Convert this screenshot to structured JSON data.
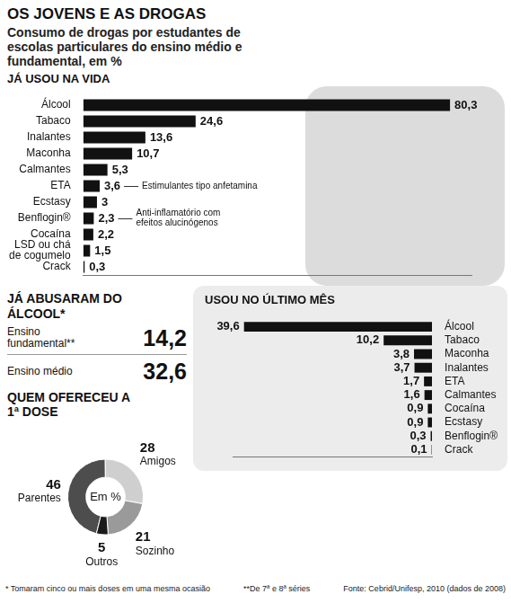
{
  "title": "OS JOVENS E AS DROGAS",
  "subtitle": "Consumo de drogas por estudantes de escolas particulares do ensino médio e fundamental, em %",
  "chart_data": [
    {
      "type": "bar",
      "title": "JÁ USOU NA VIDA",
      "orientation": "horizontal",
      "categories": [
        "Álcool",
        "Tabaco",
        "Inalantes",
        "Maconha",
        "Calmantes",
        "ETA",
        "Ecstasy",
        "Benflogin®",
        "Cocaína",
        "LSD ou chá de cogumelo",
        "Crack"
      ],
      "values": [
        80.3,
        24.6,
        13.6,
        10.7,
        5.3,
        3.6,
        3,
        2.3,
        2.2,
        1.5,
        0.3
      ],
      "value_labels": [
        "80,3",
        "24,6",
        "13,6",
        "10,7",
        "5,3",
        "3,6",
        "3",
        "2,3",
        "2,2",
        "1,5",
        "0,3"
      ],
      "color": "#111111",
      "xlim": [
        0,
        85
      ],
      "data_labels": true,
      "tick_labels": "y",
      "grid": false,
      "annotations": [
        {
          "text": "Estimulantes tipo anfetamina",
          "category": "ETA"
        },
        {
          "text": "Anti-inflamatório com efeitos alucinógenos",
          "category": "Benflogin®"
        }
      ]
    },
    {
      "type": "bar",
      "title": "USOU NO ÚLTIMO MÊS",
      "orientation": "horizontal",
      "categories": [
        "Álcool",
        "Tabaco",
        "Maconha",
        "Inalantes",
        "ETA",
        "Calmantes",
        "Cocaína",
        "Ecstasy",
        "Benflogin®",
        "Crack"
      ],
      "values": [
        39.6,
        10.2,
        3.8,
        3.7,
        1.7,
        1.6,
        0.9,
        0.9,
        0.3,
        0.1
      ],
      "value_labels": [
        "39,6",
        "10,2",
        "3,8",
        "3,7",
        "1,7",
        "1,6",
        "0,9",
        "0,9",
        "0,3",
        "0,1"
      ],
      "color": "#111111",
      "xlim": [
        0,
        42
      ],
      "data_labels": true,
      "tick_labels": "y",
      "grid": false
    },
    {
      "type": "doughnut",
      "title": "QUEM OFERECEU A 1ª DOSE",
      "center_text": "Em %",
      "categories": [
        "Parentes",
        "Amigos",
        "Sozinho",
        "Outros"
      ],
      "values": [
        46,
        28,
        21,
        5
      ],
      "colors": [
        "#4d4d4d",
        "#cfcfcf",
        "#9a9a9a",
        "#1a1a1a"
      ],
      "data_labels": true
    }
  ],
  "alcohol_abuse": {
    "title": "JÁ ABUSARAM DO ÁLCOOL*",
    "rows": [
      {
        "label": "Ensino fundamental**",
        "value": 14.2,
        "value_label": "14,2"
      },
      {
        "label": "Ensino médio",
        "value": 32.6,
        "value_label": "32,6"
      }
    ]
  },
  "footnotes": [
    "* Tomaram cinco ou mais doses em uma mesma ocasião",
    "**De 7ª e 8ª séries"
  ],
  "source": "Fonte: Cebrid/Unifesp, 2010 (dados de 2008)"
}
